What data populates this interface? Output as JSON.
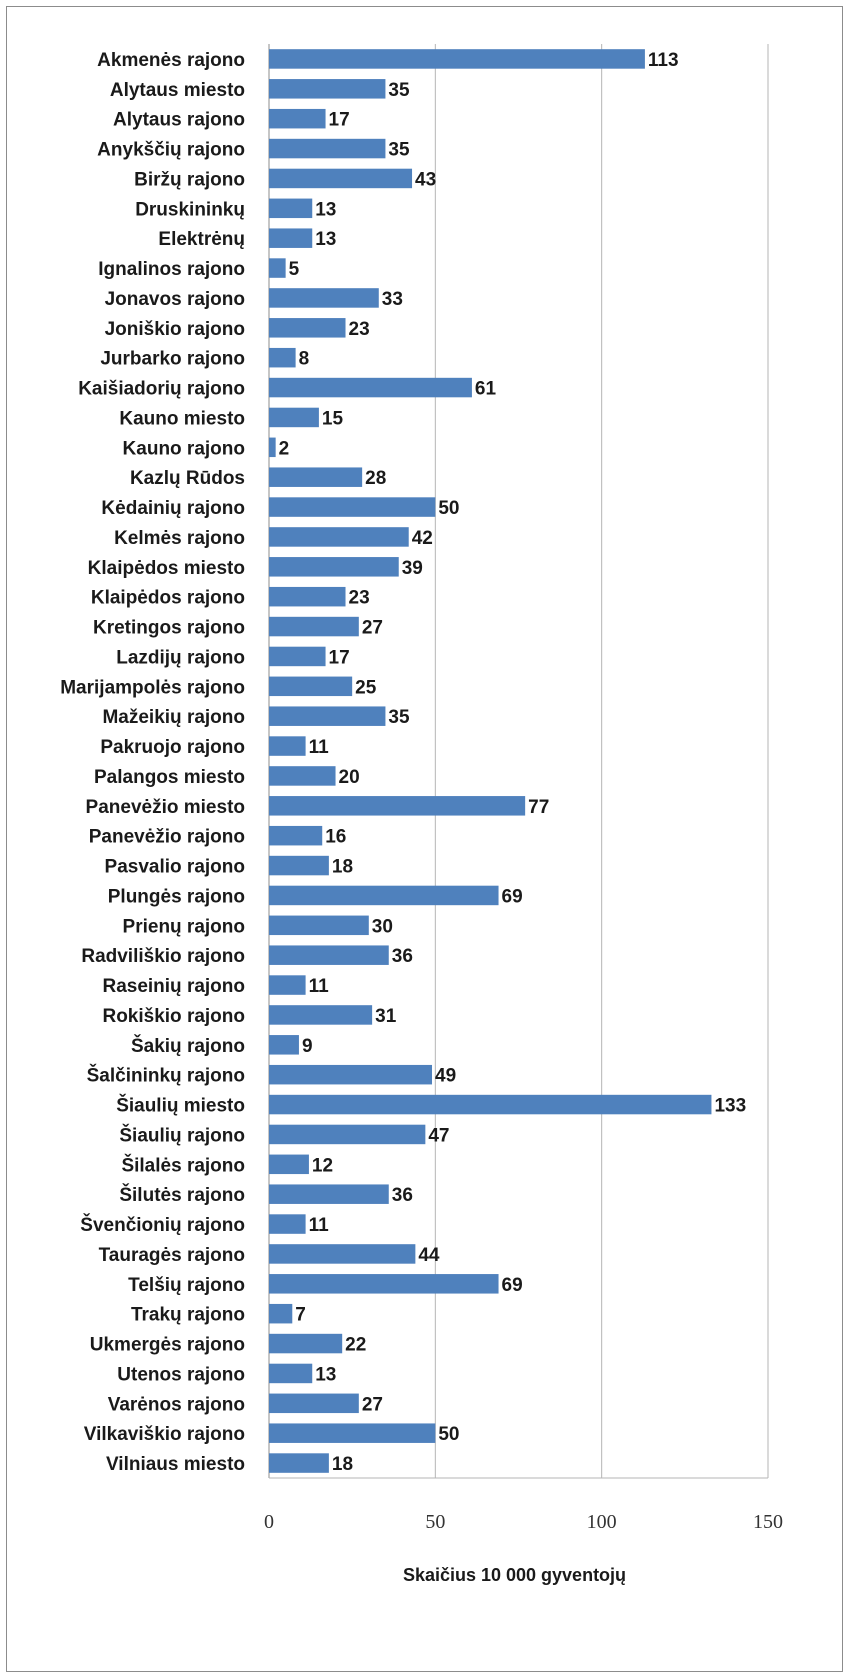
{
  "chart_data": {
    "type": "bar",
    "orientation": "horizontal",
    "title": "",
    "xlabel": "Skaičius 10 000 gyventojų",
    "ylabel": "",
    "xlim": [
      0,
      150
    ],
    "xticks": [
      0,
      50,
      100,
      150
    ],
    "grid": true,
    "bar_color": "#4f81bd",
    "categories": [
      "Akmenės rajono",
      "Alytaus miesto",
      "Alytaus rajono",
      "Anykščių rajono",
      "Biržų rajono",
      "Druskininkų",
      "Elektrėnų",
      "Ignalinos rajono",
      "Jonavos rajono",
      "Joniškio rajono",
      "Jurbarko rajono",
      "Kaišiadorių rajono",
      "Kauno miesto",
      "Kauno rajono",
      "Kazlų Rūdos",
      "Kėdainių rajono",
      "Kelmės rajono",
      "Klaipėdos miesto",
      "Klaipėdos rajono",
      "Kretingos rajono",
      "Lazdijų rajono",
      "Marijampolės rajono",
      "Mažeikių rajono",
      "Pakruojo rajono",
      "Palangos miesto",
      "Panevėžio miesto",
      "Panevėžio rajono",
      "Pasvalio rajono",
      "Plungės rajono",
      "Prienų rajono",
      "Radviliškio rajono",
      "Raseinių rajono",
      "Rokiškio rajono",
      "Šakių rajono",
      "Šalčininkų rajono",
      "Šiaulių miesto",
      "Šiaulių rajono",
      "Šilalės rajono",
      "Šilutės rajono",
      "Švenčionių rajono",
      "Tauragės rajono",
      "Telšių rajono",
      "Trakų rajono",
      "Ukmergės rajono",
      "Utenos rajono",
      "Varėnos rajono",
      "Vilkaviškio rajono",
      "Vilniaus miesto"
    ],
    "values": [
      113,
      35,
      17,
      35,
      43,
      13,
      13,
      5,
      33,
      23,
      8,
      61,
      15,
      2,
      28,
      50,
      42,
      39,
      23,
      27,
      17,
      25,
      35,
      11,
      20,
      77,
      16,
      18,
      69,
      30,
      36,
      11,
      31,
      9,
      49,
      133,
      47,
      12,
      36,
      11,
      44,
      69,
      7,
      22,
      13,
      27,
      50,
      18
    ]
  }
}
